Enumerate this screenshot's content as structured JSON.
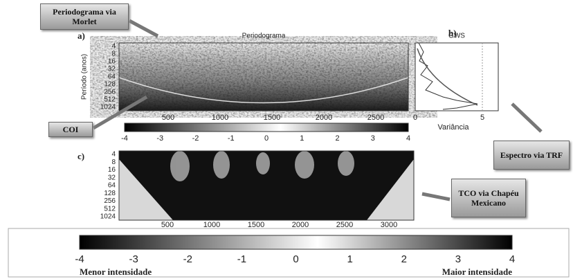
{
  "callouts": {
    "morlet": "Periodograma via Morlet",
    "coi": "COI",
    "fft": "Espectro via TRF",
    "mexican_hat": "TCO via Chapéu Mexicano"
  },
  "panel_a": {
    "label": "a)",
    "title": "Periodograma",
    "y_axis_label": "Período (anos)",
    "y_ticks": [
      4,
      8,
      16,
      32,
      64,
      128,
      256,
      512,
      1024
    ],
    "x_ticks": [
      500,
      1000,
      1500,
      2000,
      2500
    ],
    "colorbar_ticks": [
      -4,
      -3,
      -2,
      -1,
      0,
      1,
      2,
      3,
      4
    ]
  },
  "panel_b": {
    "label": "b)",
    "title": "GWS",
    "x_axis_label": "Variância",
    "x_ticks": [
      0,
      5
    ]
  },
  "panel_c": {
    "label": "c)",
    "y_ticks": [
      4,
      8,
      16,
      32,
      64,
      128,
      256,
      512,
      1024
    ],
    "x_ticks": [
      500,
      1000,
      1500,
      2000,
      2500,
      3000
    ]
  },
  "colorbar": {
    "ticks": [
      -4,
      -3,
      -2,
      -1,
      0,
      1,
      2,
      3,
      4
    ],
    "low_label": "Menor intensidade",
    "high_label": "Maior intensidade"
  }
}
